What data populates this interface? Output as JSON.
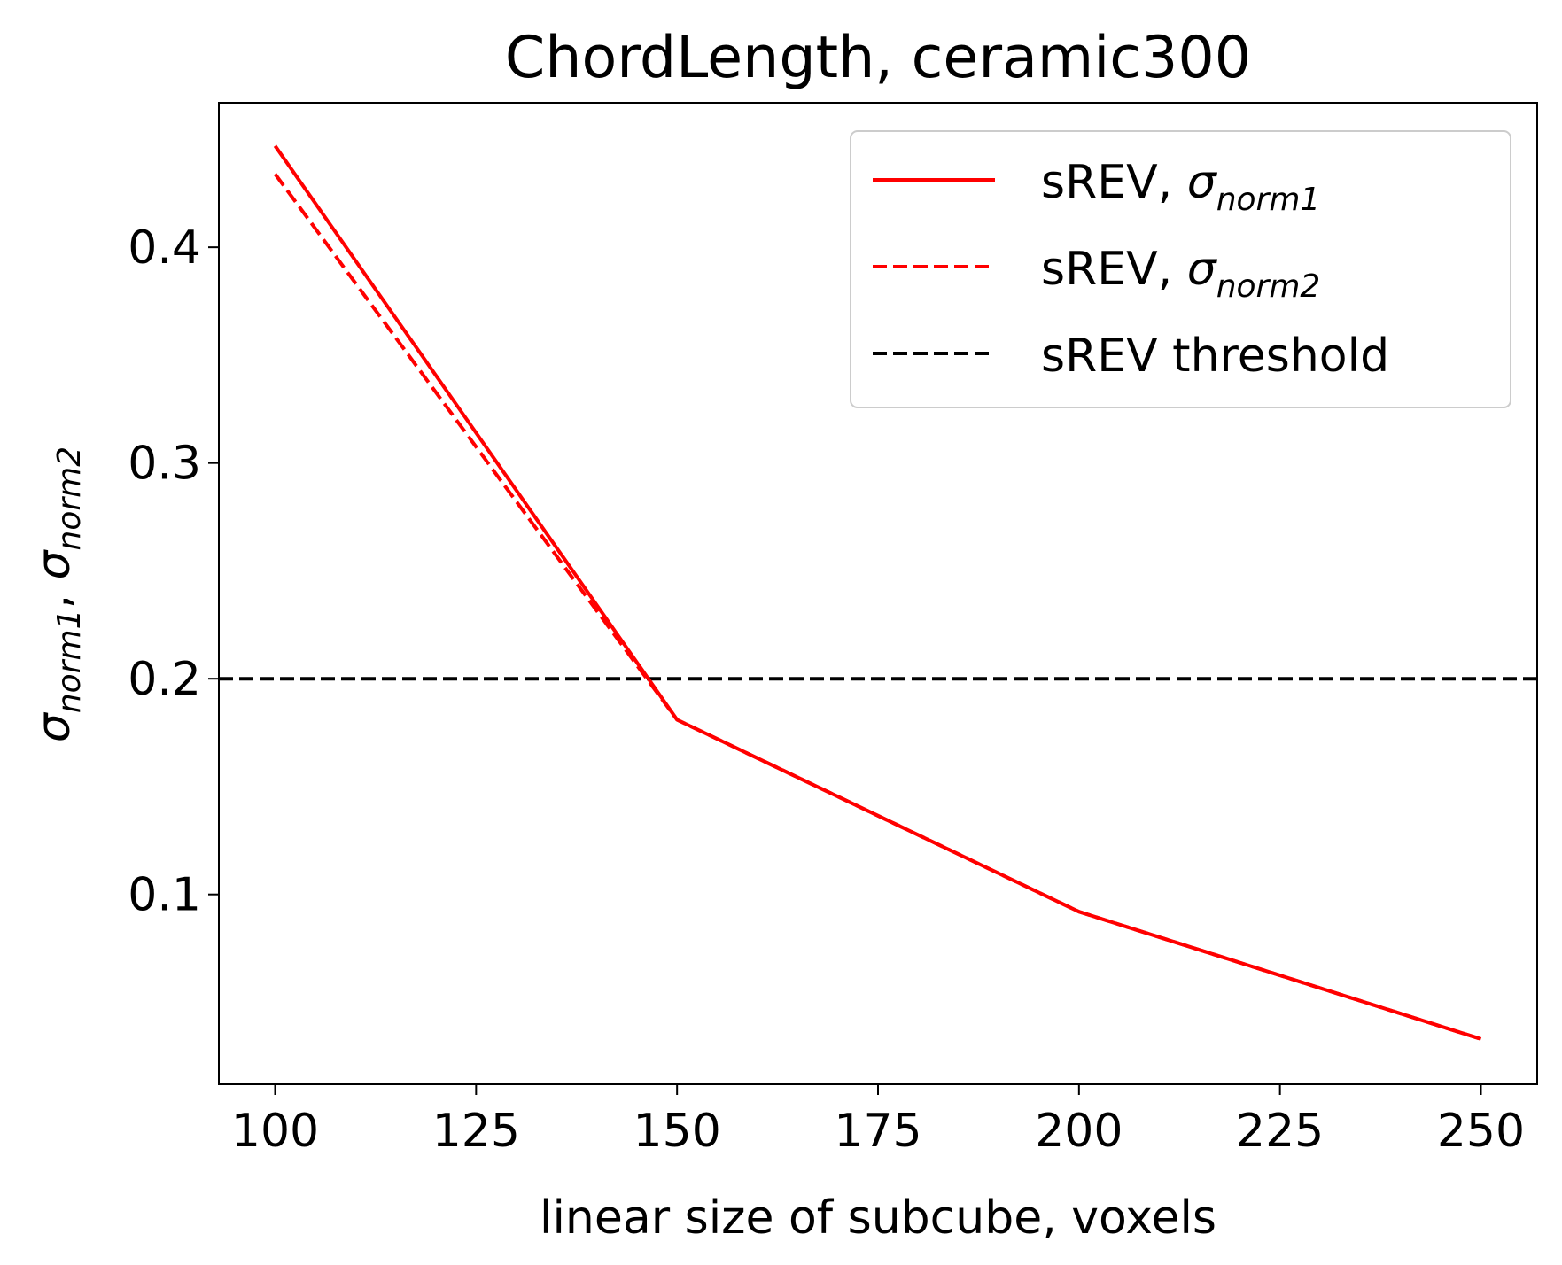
{
  "chart_data": {
    "type": "line",
    "title": "ChordLength, ceramic300",
    "xlabel": "linear size of subcube, voxels",
    "ylabel": {
      "sigma": "σ",
      "sub1": "norm1",
      "sep": ", ",
      "sub2": "norm2"
    },
    "xlim": [
      93,
      257
    ],
    "ylim": [
      0.012,
      0.467
    ],
    "xticks": [
      100,
      125,
      150,
      175,
      200,
      225,
      250
    ],
    "yticks": [
      0.1,
      0.2,
      0.3,
      0.4
    ],
    "ytick_labels": [
      "0.1",
      "0.2",
      "0.3",
      "0.4"
    ],
    "grid": false,
    "legend_position": "top-right",
    "series": [
      {
        "name": "sREV, σnorm1",
        "legend": {
          "prefix": "sREV, ",
          "sigma": "σ",
          "sub": "norm1"
        },
        "style": "solid",
        "color": "#ff0000",
        "x": [
          100,
          150,
          200,
          250
        ],
        "y": [
          0.447,
          0.181,
          0.092,
          0.033
        ]
      },
      {
        "name": "sREV, σnorm2",
        "legend": {
          "prefix": "sREV, ",
          "sigma": "σ",
          "sub": "norm2"
        },
        "style": "dashed",
        "color": "#ff0000",
        "x": [
          100,
          150,
          200,
          250
        ],
        "y": [
          0.434,
          0.181,
          0.092,
          0.033
        ]
      }
    ],
    "threshold": {
      "name": "sREV threshold",
      "y": 0.2,
      "style": "dashed",
      "color": "#000000"
    }
  }
}
